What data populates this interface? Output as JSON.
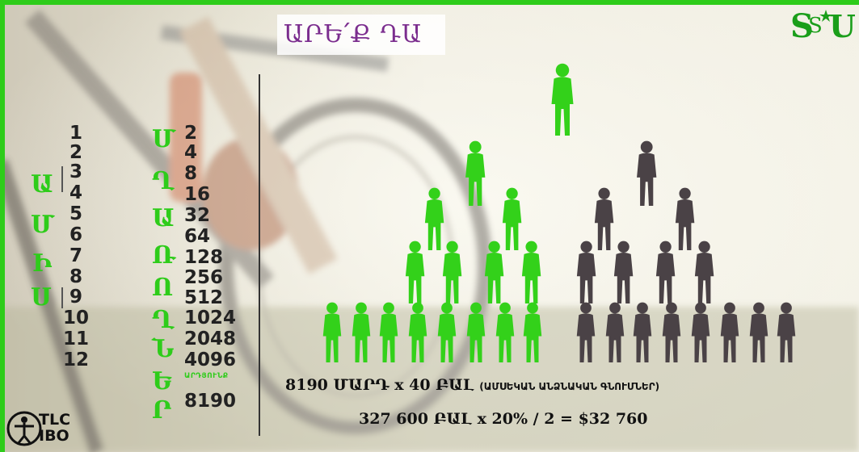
{
  "title": "ԱՐԵ՛Ք ԴԱ",
  "logo_text": "S",
  "colors": {
    "green": "#2ecc1a",
    "title_purple": "#7b2d8e",
    "dark_person": "#4a4246",
    "green_person": "#33d11a"
  },
  "months": {
    "vertical_label": [
      "Ա",
      "Մ",
      "Ի",
      "Ս"
    ],
    "numbers": [
      "1",
      "2",
      "3",
      "4",
      "5",
      "6",
      "7",
      "8",
      "9",
      "10",
      "11",
      "12"
    ]
  },
  "partners": {
    "vertical_label": [
      "Մ",
      "Ղ",
      "Ա",
      "Ռ",
      "Ո",
      "Ղ",
      "Ն",
      "Ե",
      "Ր"
    ],
    "numbers": [
      "2",
      "4",
      "8",
      "16",
      "32",
      "64",
      "128",
      "256",
      "512",
      "1024",
      "2048",
      "4096"
    ],
    "sum_label": "ԱՐԴՅՈՒՆՔ",
    "sum_value": "8190"
  },
  "formula": {
    "line1_main": "8190 ՄԱՐԴ x 40 ԲԱԼ",
    "line1_note": "(ԱՄՍԵԿԱՆ ԱՆՁՆԱԿԱՆ ԳՆՈՒՄՆԵՐ)",
    "line2": "327 600 ԲԱԼ x 20% / 2 = $32 760"
  },
  "brand": {
    "line1": "TLC",
    "line2": "IBO"
  }
}
